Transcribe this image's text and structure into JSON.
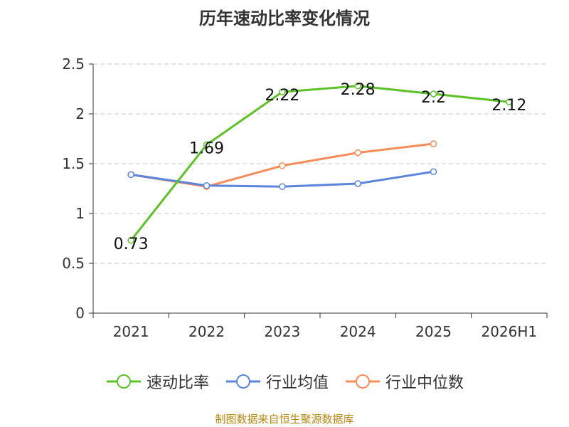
{
  "title": "历年速动比率变化情况",
  "source": "制图数据来自恒生聚源数据库",
  "chart_data": {
    "type": "line",
    "categories": [
      "2021",
      "2022",
      "2023",
      "2024",
      "2025",
      "2026H1"
    ],
    "ylim": [
      0,
      2.5
    ],
    "yticks": [
      "0",
      "0.5",
      "1",
      "1.5",
      "2",
      "2.5"
    ],
    "grid": true,
    "legend_position": "bottom",
    "series": [
      {
        "name": "速动比率",
        "color": "#5cc226",
        "values": [
          0.73,
          1.69,
          2.22,
          2.28,
          2.2,
          2.12
        ],
        "labels": [
          "0.73",
          "1.69",
          "2.22",
          "2.28",
          "2.2",
          "2.12"
        ]
      },
      {
        "name": "行业均值",
        "color": "#5b84dd",
        "values": [
          1.39,
          1.28,
          1.27,
          1.3,
          1.42,
          null
        ]
      },
      {
        "name": "行业中位数",
        "color": "#f68c58",
        "values": [
          1.39,
          1.27,
          1.48,
          1.61,
          1.7,
          null
        ]
      }
    ]
  }
}
